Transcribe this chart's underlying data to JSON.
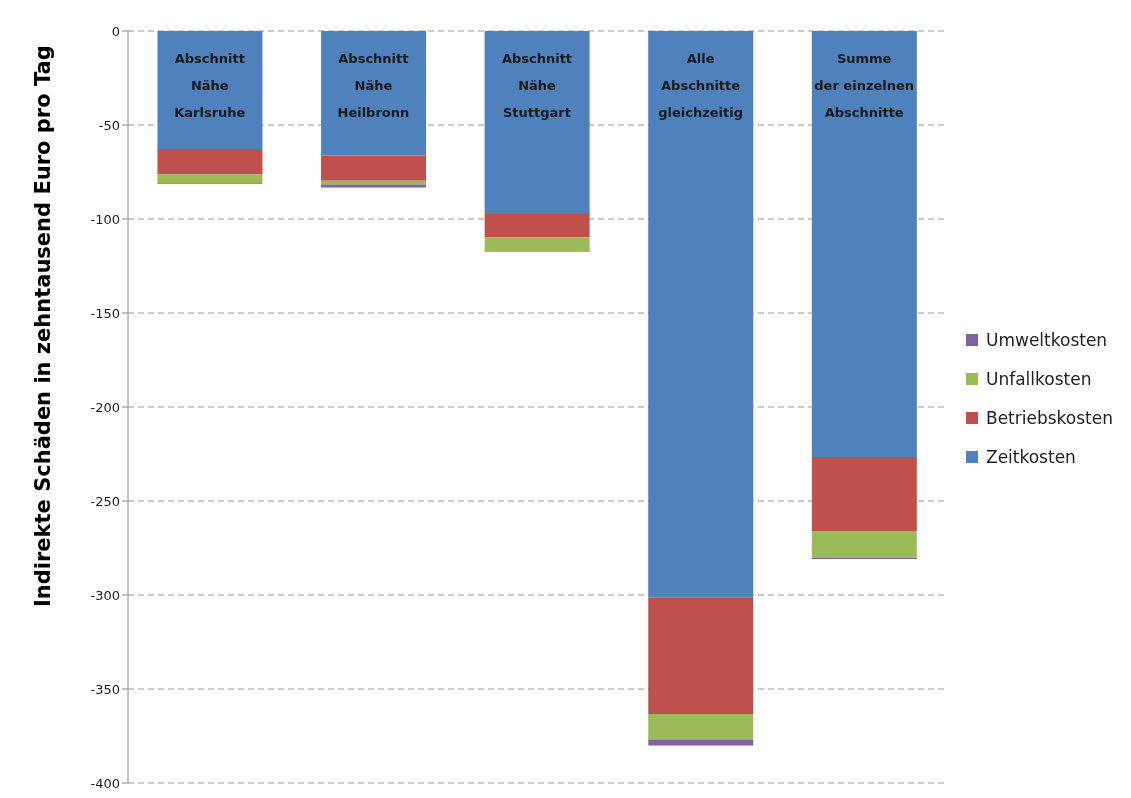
{
  "chart_data": {
    "type": "bar",
    "stacked": true,
    "ylabel": "Indirekte Schäden in zehntausend Euro pro Tag",
    "categories": [
      "Abschnitt\nNähe\nKarlsruhe",
      "Abschnitt\nNähe\nHeilbronn",
      "Abschnitt\nNähe\nStuttgart",
      "Alle\nAbschnitte\ngleichzeitig",
      "Summe\nder einzelnen\nAbschnitte"
    ],
    "series": [
      {
        "name": "Zeitkosten",
        "color": "#4f81bd",
        "values": [
          -62.7,
          -66.2,
          -97.3,
          -301.5,
          -226.6
        ]
      },
      {
        "name": "Betriebskosten",
        "color": "#c0504d",
        "values": [
          -13.6,
          -13.4,
          -12.4,
          -61.8,
          -39.4
        ]
      },
      {
        "name": "Unfallkosten",
        "color": "#9bbb59",
        "values": [
          -4.6,
          -2.1,
          -7.4,
          -13.6,
          -14.3
        ]
      },
      {
        "name": "Umweltkosten",
        "color": "#8064a2",
        "values": [
          -0.4,
          -1.5,
          -0.3,
          -3.1,
          -0.5
        ]
      }
    ],
    "ylim": [
      -400,
      0
    ],
    "yticks": [
      -400,
      -350,
      -300,
      -250,
      -200,
      -150,
      -100,
      -50,
      0
    ],
    "grid": "y",
    "legend": "right"
  }
}
